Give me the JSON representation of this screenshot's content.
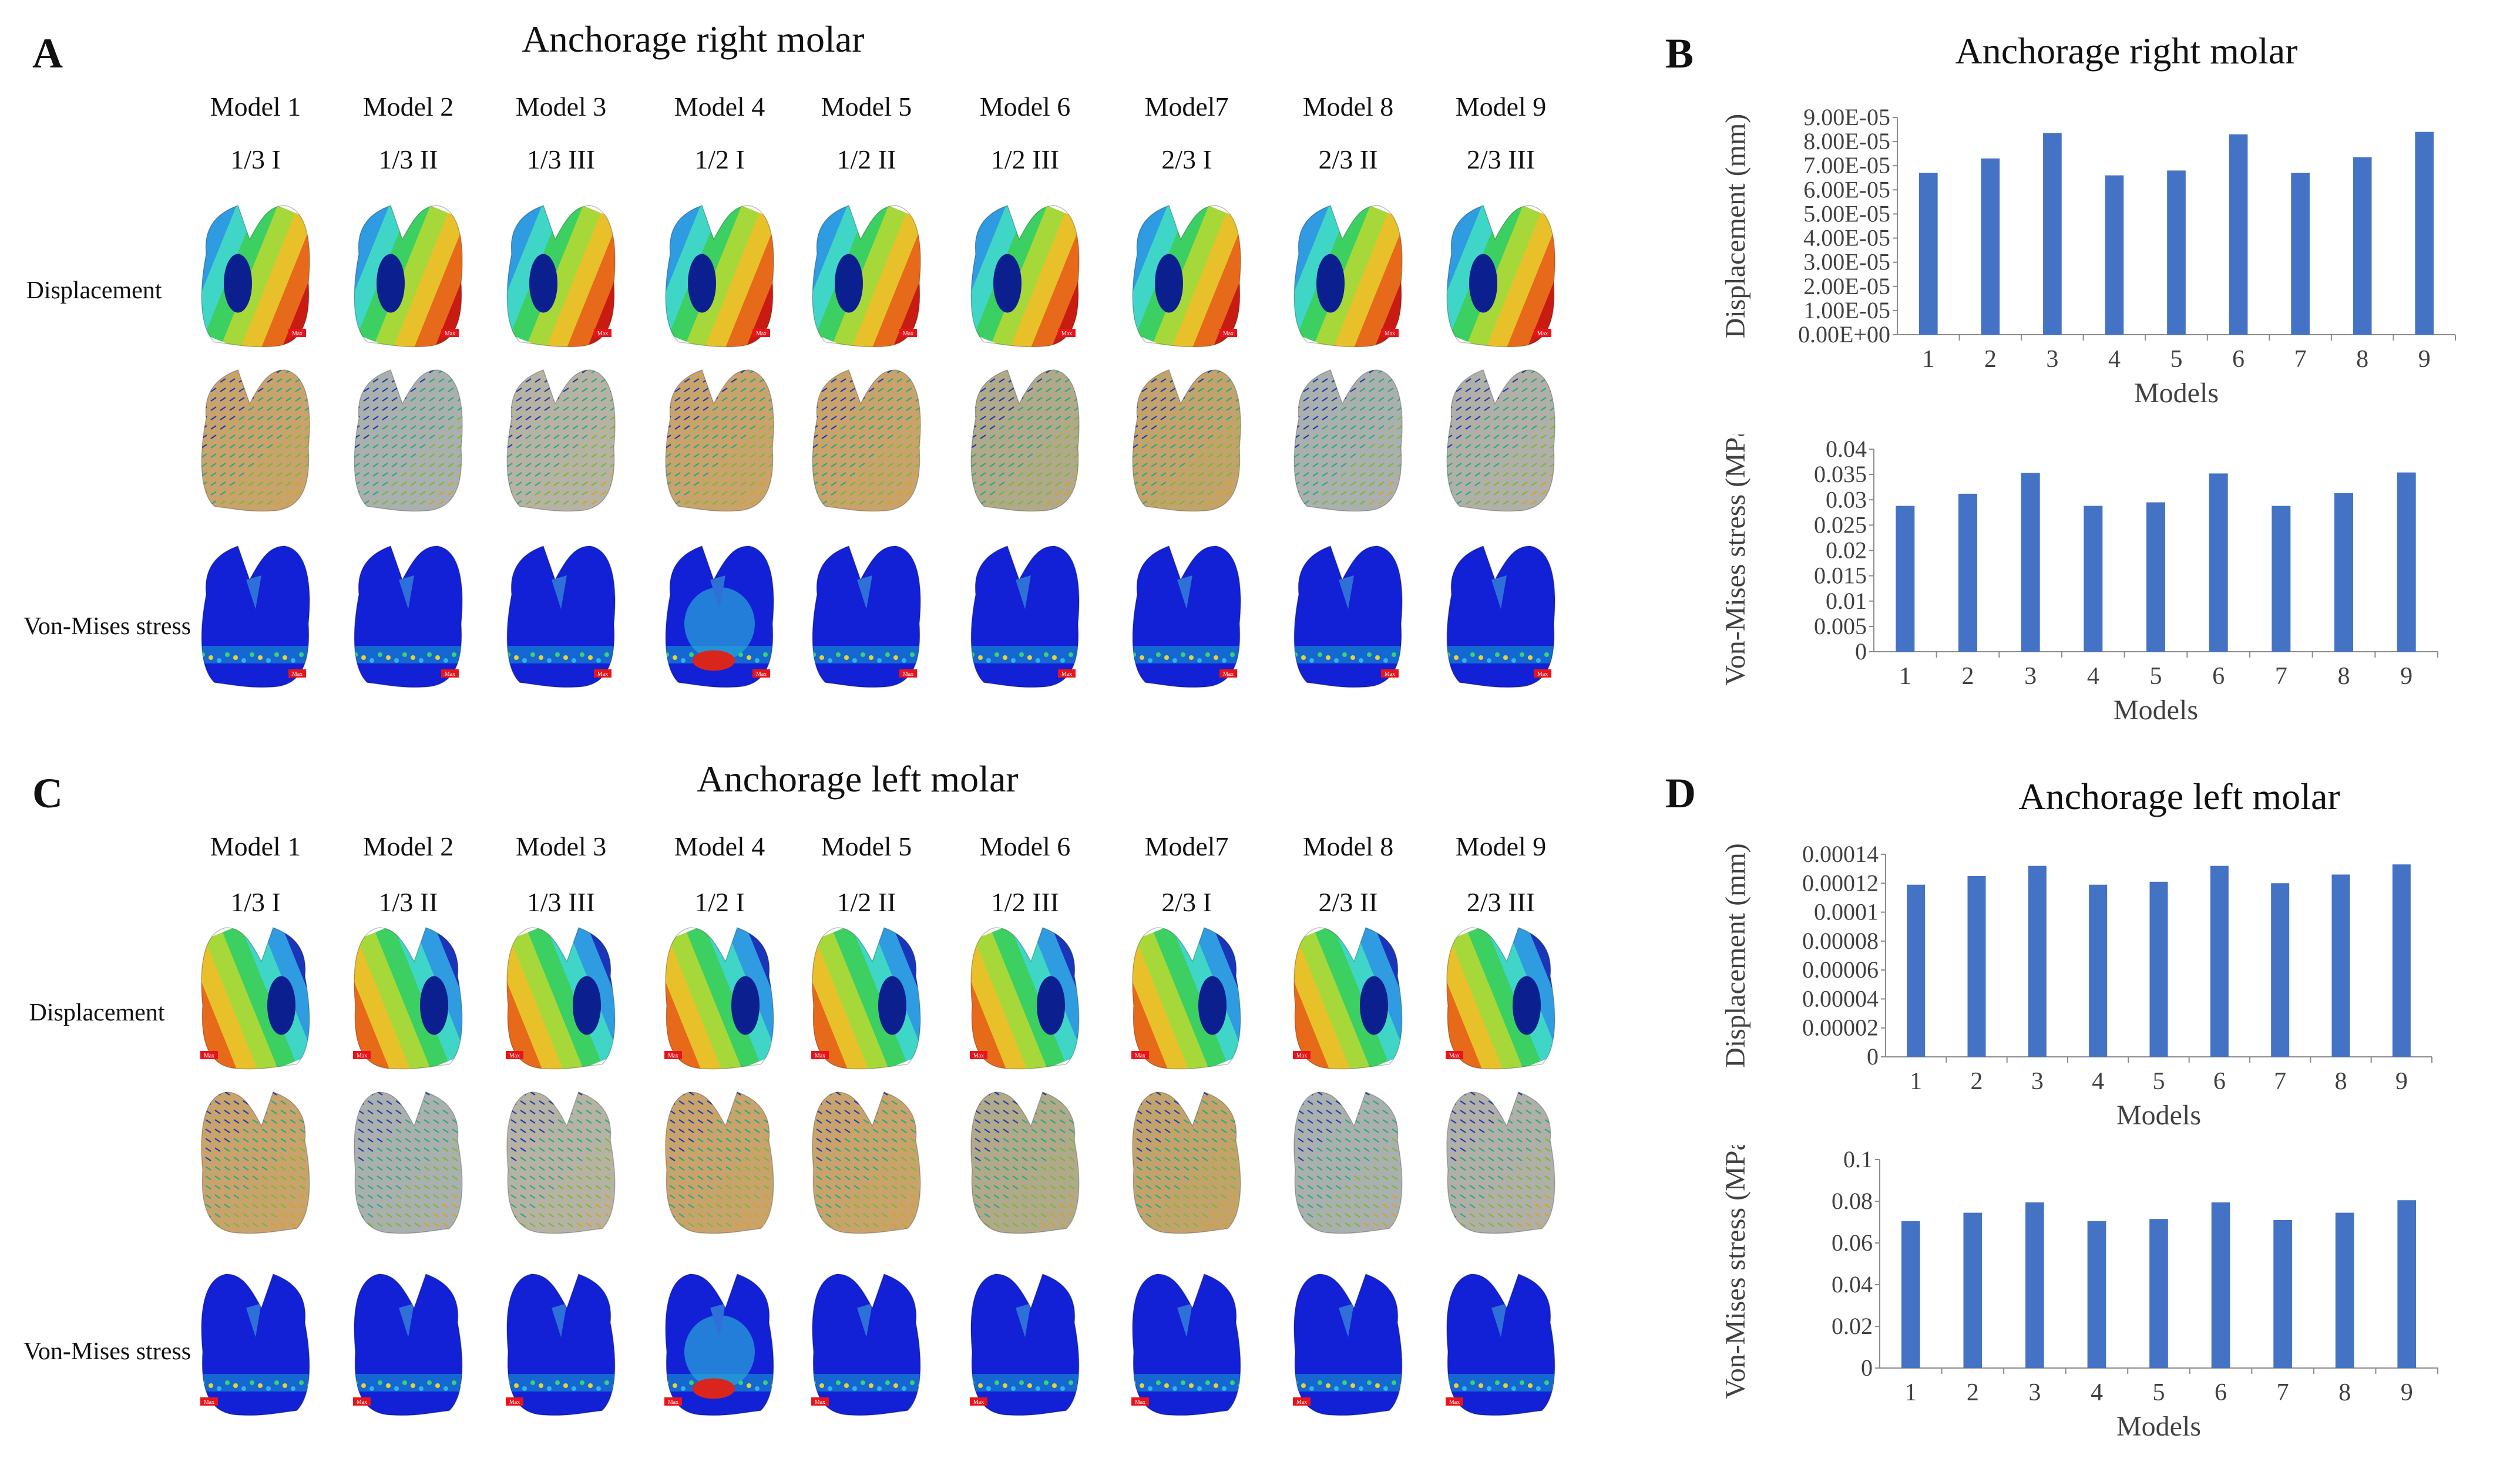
{
  "panels": [
    {
      "letter": "A",
      "title": "Anchorage right molar"
    },
    {
      "letter": "B",
      "title": "Anchorage right molar"
    },
    {
      "letter": "C",
      "title": "Anchorage left molar"
    },
    {
      "letter": "D",
      "title": "Anchorage left molar"
    }
  ],
  "grid_a": {
    "models": [
      "Model 1",
      "Model 2",
      "Model 3",
      "Model 4",
      "Model 5",
      "Model 6",
      "Model7",
      "Model 8",
      "Model 9"
    ],
    "variants": [
      "1/3 I",
      "1/3 II",
      "1/3 III",
      "1/2 I",
      "1/2 II",
      "1/2 III",
      "2/3 I",
      "2/3 II",
      "2/3 III"
    ],
    "row_labels": [
      "Displacement",
      "",
      "Von-Mises stress"
    ],
    "max_tag": "Max"
  },
  "grid_c": {
    "models": [
      "Model 1",
      "Model 2",
      "Model 3",
      "Model 4",
      "Model 5",
      "Model 6",
      "Model7",
      "Model 8",
      "Model 9"
    ],
    "variants": [
      "1/3 I",
      "1/3 II",
      "1/3 III",
      "1/2 I",
      "1/2 II",
      "1/2 III",
      "2/3 I",
      "2/3 II",
      "2/3 III"
    ],
    "row_labels": [
      "Displacement",
      "",
      "Von-Mises stress"
    ],
    "max_tag": "Max"
  },
  "colors": {
    "bar": "#4472C4",
    "axis": "#8c8c8c",
    "grid": "#d9d9d9"
  },
  "chart_data": [
    {
      "panel": "B",
      "type": "bar",
      "title": "Anchorage right molar",
      "categories": [
        "1",
        "2",
        "3",
        "4",
        "5",
        "6",
        "7",
        "8",
        "9"
      ],
      "values": [
        6.7e-05,
        7.3e-05,
        8.35e-05,
        6.6e-05,
        6.8e-05,
        8.3e-05,
        6.7e-05,
        7.35e-05,
        8.4e-05
      ],
      "xlabel": "Models",
      "ylabel": "Displacement (mm)",
      "ylim": [
        0,
        9e-05
      ],
      "yticks": [
        "0.00E+00",
        "1.00E-05",
        "2.00E-05",
        "3.00E-05",
        "4.00E-05",
        "5.00E-05",
        "6.00E-05",
        "7.00E-05",
        "8.00E-05",
        "9.00E-05"
      ],
      "grid": false
    },
    {
      "panel": "B",
      "type": "bar",
      "categories": [
        "1",
        "2",
        "3",
        "4",
        "5",
        "6",
        "7",
        "8",
        "9"
      ],
      "values": [
        0.0288,
        0.0312,
        0.0353,
        0.0288,
        0.0295,
        0.0352,
        0.0288,
        0.0313,
        0.0354
      ],
      "xlabel": "Models",
      "ylabel": "Von-Mises stress (MPa)",
      "ylim": [
        0,
        0.04
      ],
      "yticks": [
        "0",
        "0.005",
        "0.01",
        "0.015",
        "0.02",
        "0.025",
        "0.03",
        "0.035",
        "0.04"
      ],
      "grid": false
    },
    {
      "panel": "D",
      "type": "bar",
      "title": "Anchorage left molar",
      "categories": [
        "1",
        "2",
        "3",
        "4",
        "5",
        "6",
        "7",
        "8",
        "9"
      ],
      "values": [
        0.000119,
        0.000125,
        0.000132,
        0.000119,
        0.000121,
        0.000132,
        0.00012,
        0.000126,
        0.000133
      ],
      "xlabel": "Models",
      "ylabel": "Displacement (mm)",
      "ylim": [
        0,
        0.00014
      ],
      "yticks": [
        "0",
        "0.00002",
        "0.00004",
        "0.00006",
        "0.00008",
        "0.0001",
        "0.00012",
        "0.00014"
      ],
      "grid": false
    },
    {
      "panel": "D",
      "type": "bar",
      "categories": [
        "1",
        "2",
        "3",
        "4",
        "5",
        "6",
        "7",
        "8",
        "9"
      ],
      "values": [
        0.0705,
        0.0745,
        0.0795,
        0.0705,
        0.0715,
        0.0795,
        0.071,
        0.0745,
        0.0805
      ],
      "xlabel": "Models",
      "ylabel": "Von-Mises stress (MPa)",
      "ylim": [
        0,
        0.1
      ],
      "yticks": [
        "0",
        "0.02",
        "0.04",
        "0.06",
        "0.08",
        "0.1"
      ],
      "grid": false
    }
  ]
}
